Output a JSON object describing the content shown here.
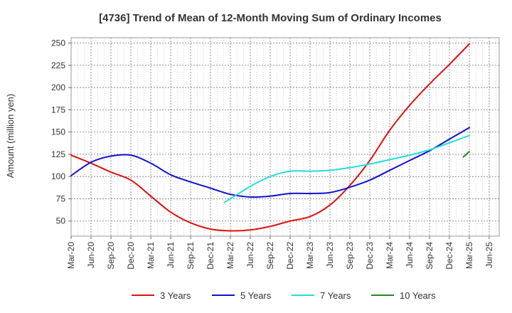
{
  "chart_data": {
    "type": "line",
    "title": "[4736]  Trend of Mean of 12-Month Moving Sum of Ordinary Incomes",
    "xlabel": "",
    "ylabel": "Amount (million yen)",
    "ylim": [
      33,
      256
    ],
    "yticks": [
      50,
      75,
      100,
      125,
      150,
      175,
      200,
      225,
      250
    ],
    "categories": [
      "Mar-20",
      "Jun-20",
      "Sep-20",
      "Dec-20",
      "Mar-21",
      "Jun-21",
      "Sep-21",
      "Dec-21",
      "Mar-22",
      "Jun-22",
      "Sep-22",
      "Dec-22",
      "Mar-23",
      "Jun-23",
      "Sep-23",
      "Dec-23",
      "Mar-24",
      "Jun-24",
      "Sep-24",
      "Dec-24",
      "Mar-25",
      "Jun-25"
    ],
    "grid": true,
    "legend_position": "bottom",
    "series": [
      {
        "name": "3 Years",
        "color": "#dd1111",
        "points": [
          [
            0,
            124
          ],
          [
            1,
            115
          ],
          [
            2,
            105
          ],
          [
            3,
            96
          ],
          [
            4,
            78
          ],
          [
            5,
            60
          ],
          [
            6,
            48
          ],
          [
            7,
            41
          ],
          [
            8,
            39
          ],
          [
            9,
            40
          ],
          [
            10,
            44
          ],
          [
            11,
            50
          ],
          [
            12,
            55
          ],
          [
            13,
            68
          ],
          [
            14,
            90
          ],
          [
            15,
            118
          ],
          [
            16,
            152
          ],
          [
            17,
            180
          ],
          [
            18,
            204
          ],
          [
            19,
            226
          ],
          [
            20,
            249
          ]
        ]
      },
      {
        "name": "5 Years",
        "color": "#1111cc",
        "points": [
          [
            0,
            101
          ],
          [
            1,
            116
          ],
          [
            2,
            123
          ],
          [
            3,
            124
          ],
          [
            4,
            115
          ],
          [
            5,
            102
          ],
          [
            6,
            94
          ],
          [
            7,
            87
          ],
          [
            8,
            80
          ],
          [
            9,
            77
          ],
          [
            10,
            78
          ],
          [
            11,
            81
          ],
          [
            12,
            81
          ],
          [
            13,
            82
          ],
          [
            14,
            88
          ],
          [
            15,
            96
          ],
          [
            16,
            107
          ],
          [
            17,
            118
          ],
          [
            18,
            129
          ],
          [
            19,
            142
          ],
          [
            20,
            155
          ]
        ]
      },
      {
        "name": "7 Years",
        "color": "#22dddd",
        "points": [
          [
            7.7,
            71
          ],
          [
            8,
            75
          ],
          [
            9,
            89
          ],
          [
            10,
            100
          ],
          [
            11,
            106
          ],
          [
            12,
            106
          ],
          [
            13,
            107
          ],
          [
            14,
            110
          ],
          [
            15,
            114
          ],
          [
            16,
            119
          ],
          [
            17,
            124
          ],
          [
            18,
            130
          ],
          [
            19,
            138
          ],
          [
            20,
            146
          ]
        ]
      },
      {
        "name": "10 Years",
        "color": "#228822",
        "points": [
          [
            19.7,
            122
          ],
          [
            20,
            128
          ]
        ]
      }
    ]
  }
}
